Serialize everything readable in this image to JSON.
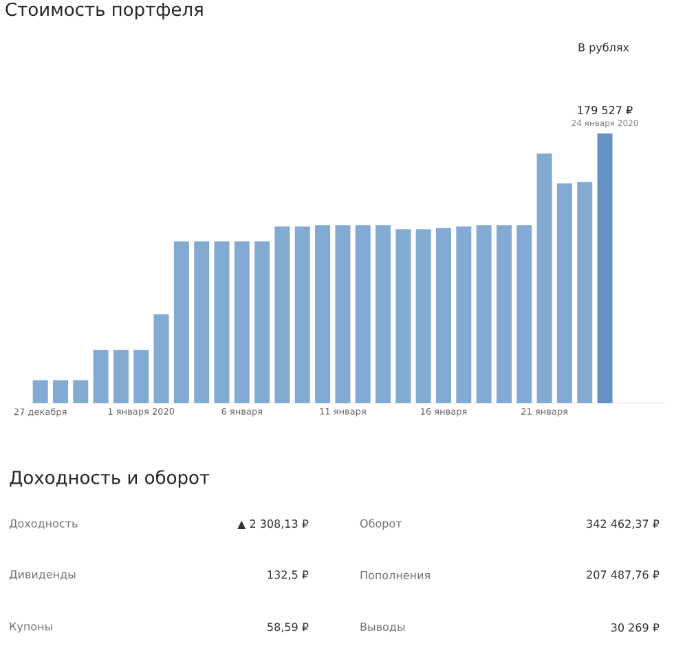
{
  "chart_data": [
    {
      "type": "bar",
      "title": "Стоимость портфеля",
      "categories": [
        "27 декабря",
        null,
        null,
        null,
        null,
        "1 января 2020",
        null,
        null,
        null,
        null,
        "6 января",
        null,
        null,
        null,
        null,
        "11 января",
        null,
        null,
        null,
        null,
        "16 января",
        null,
        null,
        null,
        null,
        "21 января",
        null,
        null,
        null
      ],
      "values": [
        15300,
        15300,
        15300,
        35400,
        35400,
        35400,
        59200,
        107700,
        107700,
        107700,
        107700,
        107700,
        117600,
        117600,
        118500,
        118500,
        118500,
        118500,
        115800,
        115800,
        116700,
        117600,
        118500,
        118500,
        118500,
        166100,
        146300,
        147200,
        179527
      ],
      "colors": [
        "#82aad3",
        "#82aad3",
        "#82aad3",
        "#82aad3",
        "#82aad3",
        "#82aad3",
        "#82aad3",
        "#82aad3",
        "#82aad3",
        "#82aad3",
        "#82aad3",
        "#82aad3",
        "#82aad3",
        "#82aad3",
        "#82aad3",
        "#82aad3",
        "#82aad3",
        "#82aad3",
        "#82aad3",
        "#82aad3",
        "#82aad3",
        "#82aad3",
        "#82aad3",
        "#82aad3",
        "#82aad3",
        "#82aad3",
        "#82aad3",
        "#82aad3",
        "#6590c4"
      ],
      "value_labels": [
        null,
        null,
        null,
        null,
        null,
        null,
        null,
        null,
        null,
        null,
        null,
        null,
        null,
        null,
        null,
        null,
        null,
        null,
        null,
        null,
        null,
        null,
        null,
        null,
        null,
        null,
        null,
        null,
        "179 527 ₽"
      ],
      "annotations": [
        "24 января 2020",
        "В рублях"
      ]
    },
    {
      "type": "other",
      "title": "Доходность и оборот",
      "annotations": [
        "Доходность",
        "▲ 2 308,13 ₽",
        "Оборот",
        "342 462,37 ₽",
        "Дивиденды",
        "132,5 ₽",
        "Пополнения",
        "207 487,76 ₽",
        "Купоны",
        "58,59 ₽",
        "Выводы",
        "30 269 ₽"
      ]
    }
  ]
}
